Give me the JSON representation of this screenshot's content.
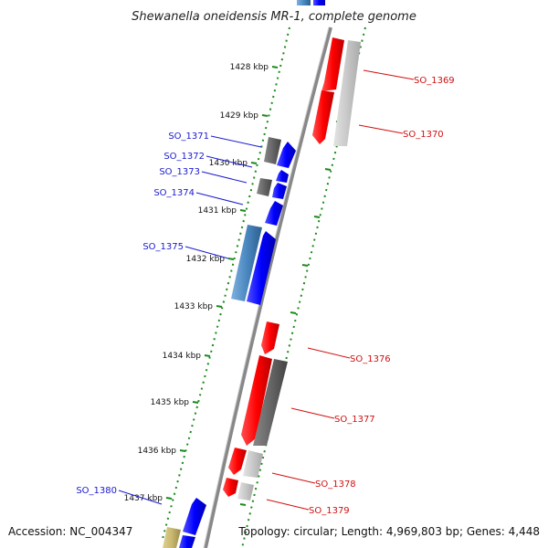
{
  "title": "Shewanella oneidensis MR-1, complete genome",
  "footer": {
    "accession": "Accession: NC_004347",
    "topology": "Topology: circular; Length: 4,969,803 bp; Genes: 4,448"
  },
  "ticks": [
    {
      "label": "1428 kbp"
    },
    {
      "label": "1429 kbp"
    },
    {
      "label": "1430 kbp"
    },
    {
      "label": "1431 kbp"
    },
    {
      "label": "1432 kbp"
    },
    {
      "label": "1433 kbp"
    },
    {
      "label": "1434 kbp"
    },
    {
      "label": "1435 kbp"
    },
    {
      "label": "1436 kbp"
    },
    {
      "label": "1437 kbp"
    }
  ],
  "gene_labels": [
    {
      "name": "SO_1369",
      "strand": "forward"
    },
    {
      "name": "SO_1370",
      "strand": "forward"
    },
    {
      "name": "SO_1371",
      "strand": "reverse"
    },
    {
      "name": "SO_1372",
      "strand": "reverse"
    },
    {
      "name": "SO_1373",
      "strand": "reverse"
    },
    {
      "name": "SO_1374",
      "strand": "reverse"
    },
    {
      "name": "SO_1375",
      "strand": "reverse"
    },
    {
      "name": "SO_1376",
      "strand": "forward"
    },
    {
      "name": "SO_1377",
      "strand": "forward"
    },
    {
      "name": "SO_1378",
      "strand": "forward"
    },
    {
      "name": "SO_1379",
      "strand": "forward"
    },
    {
      "name": "SO_1380",
      "strand": "reverse"
    }
  ],
  "colors": {
    "forward_cds": "#ff0000",
    "reverse_cds": "#0000ff",
    "gray_feature": "#666666",
    "light_gray_feature": "#c8c8c8",
    "steel_blue_feature": "#4a88c0",
    "khaki_feature": "#c8b870",
    "tick_green": "#1a8a1a",
    "backbone": "#888888"
  }
}
